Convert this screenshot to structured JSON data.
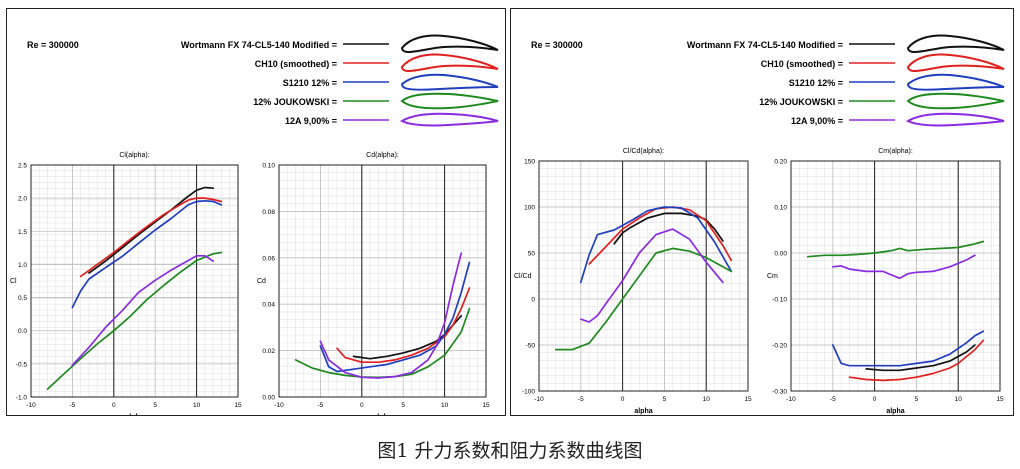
{
  "caption": "图1 升力系数和阻力系数曲线图",
  "legend": {
    "re_label": "Re = 300000",
    "entries": [
      {
        "label": "Wortmann FX 74-CL5-140 Modified =",
        "color": "#111111",
        "profile": "highcamber"
      },
      {
        "label": "CH10 (smoothed) =",
        "color": "#e0201e",
        "profile": "highcamber"
      },
      {
        "label": "S1210 12% =",
        "color": "#1f3fbf",
        "profile": "camber"
      },
      {
        "label": "12% JOUKOWSKI =",
        "color": "#1e8a1e",
        "profile": "symmetric"
      },
      {
        "label": "12A 9,00% =",
        "color": "#8a2be2",
        "profile": "thin"
      }
    ]
  },
  "chart_data": [
    {
      "type": "line",
      "title": "Cl(alpha):",
      "xlabel": "alpha",
      "ylabel": "Cl",
      "xlim": [
        -10,
        15
      ],
      "ylim": [
        -1.0,
        2.5
      ],
      "xticks": [
        "-10",
        "-5",
        "0",
        "5",
        "10",
        "15"
      ],
      "yticks": [
        "-1.0",
        "-0.5",
        "0.0",
        "0.5",
        "1.0",
        "1.5",
        "2.0",
        "2.5"
      ],
      "grid": true,
      "series": [
        {
          "color": "#111111",
          "x": [
            -3,
            -1,
            1,
            3,
            5,
            7,
            8,
            9,
            10,
            11,
            12
          ],
          "y": [
            0.87,
            1.05,
            1.25,
            1.45,
            1.64,
            1.83,
            1.93,
            2.03,
            2.12,
            2.16,
            2.15
          ]
        },
        {
          "color": "#e0201e",
          "x": [
            -4,
            -2,
            0,
            2,
            4,
            6,
            8,
            9,
            10,
            11,
            12,
            13
          ],
          "y": [
            0.82,
            1.0,
            1.18,
            1.38,
            1.57,
            1.75,
            1.9,
            1.97,
            2.0,
            2.0,
            1.98,
            1.95
          ]
        },
        {
          "color": "#1f3fbf",
          "x": [
            -5,
            -4,
            -3,
            -1,
            1,
            3,
            5,
            7,
            8,
            9,
            10,
            11,
            12,
            13
          ],
          "y": [
            0.35,
            0.6,
            0.78,
            0.95,
            1.12,
            1.32,
            1.52,
            1.7,
            1.8,
            1.9,
            1.95,
            1.96,
            1.95,
            1.9
          ]
        },
        {
          "color": "#1e8a1e",
          "x": [
            -8,
            -6,
            -4,
            -2,
            0,
            2,
            4,
            6,
            8,
            10,
            12,
            13
          ],
          "y": [
            -0.88,
            -0.65,
            -0.42,
            -0.2,
            0.0,
            0.22,
            0.47,
            0.68,
            0.88,
            1.06,
            1.16,
            1.18
          ]
        },
        {
          "color": "#8a2be2",
          "x": [
            -5,
            -3,
            -1,
            1,
            3,
            5,
            7,
            9,
            10,
            11,
            12
          ],
          "y": [
            -0.52,
            -0.25,
            0.05,
            0.3,
            0.58,
            0.76,
            0.92,
            1.06,
            1.13,
            1.13,
            1.05
          ]
        }
      ]
    },
    {
      "type": "line",
      "title": "Cd(alpha):",
      "xlabel": "alpha",
      "ylabel": "Cd",
      "xlim": [
        -10,
        15
      ],
      "ylim": [
        0.0,
        0.1
      ],
      "xticks": [
        "-10",
        "-5",
        "0",
        "5",
        "10",
        "15"
      ],
      "yticks": [
        "0.00",
        "0.02",
        "0.04",
        "0.06",
        "0.08",
        "0.10"
      ],
      "grid": true,
      "series": [
        {
          "color": "#111111",
          "x": [
            -1,
            1,
            3,
            5,
            7,
            9,
            10,
            11,
            12
          ],
          "y": [
            0.0175,
            0.0165,
            0.0175,
            0.019,
            0.021,
            0.024,
            0.027,
            0.031,
            0.035
          ]
        },
        {
          "color": "#e0201e",
          "x": [
            -3,
            -2,
            0,
            2,
            4,
            6,
            8,
            10,
            11,
            12,
            13
          ],
          "y": [
            0.021,
            0.017,
            0.015,
            0.015,
            0.016,
            0.018,
            0.021,
            0.026,
            0.031,
            0.038,
            0.047
          ]
        },
        {
          "color": "#1f3fbf",
          "x": [
            -5,
            -4,
            -3,
            -1,
            1,
            3,
            5,
            7,
            9,
            10,
            11,
            12,
            13
          ],
          "y": [
            0.022,
            0.013,
            0.011,
            0.012,
            0.013,
            0.014,
            0.016,
            0.018,
            0.022,
            0.027,
            0.034,
            0.045,
            0.058
          ]
        },
        {
          "color": "#1e8a1e",
          "x": [
            -8,
            -6,
            -4,
            -2,
            0,
            2,
            4,
            6,
            8,
            10,
            12,
            13
          ],
          "y": [
            0.016,
            0.0125,
            0.0105,
            0.0093,
            0.0086,
            0.0085,
            0.0088,
            0.0098,
            0.013,
            0.018,
            0.028,
            0.038
          ]
        },
        {
          "color": "#8a2be2",
          "x": [
            -5,
            -4,
            -2,
            0,
            2,
            4,
            6,
            8,
            9,
            10,
            11,
            12
          ],
          "y": [
            0.024,
            0.016,
            0.0105,
            0.0085,
            0.0082,
            0.0088,
            0.0105,
            0.016,
            0.022,
            0.032,
            0.048,
            0.062
          ]
        }
      ]
    },
    {
      "type": "line",
      "title": "Cl/Cd(alpha):",
      "xlabel": "alpha",
      "ylabel": "Cl/Cd",
      "xlim": [
        -10,
        15
      ],
      "ylim": [
        -100,
        150
      ],
      "xticks": [
        "-10",
        "-5",
        "0",
        "5",
        "10",
        "15"
      ],
      "yticks": [
        "-100",
        "-50",
        "0",
        "50",
        "100",
        "150"
      ],
      "grid": true,
      "series": [
        {
          "color": "#111111",
          "x": [
            -1,
            0,
            1,
            3,
            5,
            7,
            9,
            10,
            11,
            12
          ],
          "y": [
            60,
            72,
            78,
            88,
            93,
            93,
            90,
            86,
            76,
            63
          ]
        },
        {
          "color": "#e0201e",
          "x": [
            -4,
            -2,
            0,
            2,
            4,
            6,
            8,
            10,
            12,
            13
          ],
          "y": [
            38,
            57,
            76,
            88,
            98,
            100,
            97,
            85,
            58,
            42
          ]
        },
        {
          "color": "#1f3fbf",
          "x": [
            -5,
            -4,
            -3,
            -1,
            1,
            3,
            5,
            7,
            9,
            11,
            13
          ],
          "y": [
            18,
            48,
            70,
            75,
            85,
            96,
            100,
            99,
            88,
            62,
            30
          ]
        },
        {
          "color": "#1e8a1e",
          "x": [
            -8,
            -6,
            -4,
            -2,
            0,
            2,
            4,
            6,
            8,
            10,
            12,
            13
          ],
          "y": [
            -55,
            -55,
            -48,
            -25,
            0,
            25,
            50,
            55,
            52,
            45,
            35,
            30
          ]
        },
        {
          "color": "#8a2be2",
          "x": [
            -5,
            -4,
            -3,
            -2,
            0,
            2,
            4,
            6,
            8,
            10,
            12
          ],
          "y": [
            -22,
            -25,
            -18,
            -5,
            20,
            50,
            70,
            76,
            65,
            40,
            18
          ]
        }
      ]
    },
    {
      "type": "line",
      "title": "Cm(alpha):",
      "xlabel": "alpha",
      "ylabel": "Cm",
      "xlim": [
        -10,
        15
      ],
      "ylim": [
        -0.3,
        0.2
      ],
      "xticks": [
        "-10",
        "-5",
        "0",
        "5",
        "10",
        "15"
      ],
      "yticks": [
        "-0.30",
        "-0.20",
        "-0.10",
        "0.00",
        "0.10",
        "0.20"
      ],
      "grid": true,
      "series": [
        {
          "color": "#111111",
          "x": [
            -1,
            1,
            3,
            5,
            7,
            9,
            10,
            11,
            12
          ],
          "y": [
            -0.252,
            -0.255,
            -0.255,
            -0.25,
            -0.245,
            -0.235,
            -0.225,
            -0.215,
            -0.2
          ]
        },
        {
          "color": "#e0201e",
          "x": [
            -3,
            -1,
            1,
            3,
            5,
            7,
            9,
            10,
            11,
            12,
            13
          ],
          "y": [
            -0.27,
            -0.275,
            -0.277,
            -0.275,
            -0.27,
            -0.262,
            -0.25,
            -0.24,
            -0.225,
            -0.21,
            -0.19
          ]
        },
        {
          "color": "#1f3fbf",
          "x": [
            -5,
            -4,
            -3,
            -1,
            1,
            3,
            5,
            7,
            9,
            11,
            12,
            13
          ],
          "y": [
            -0.2,
            -0.24,
            -0.245,
            -0.245,
            -0.245,
            -0.245,
            -0.24,
            -0.235,
            -0.22,
            -0.195,
            -0.18,
            -0.17
          ]
        },
        {
          "color": "#1e8a1e",
          "x": [
            -8,
            -6,
            -4,
            -2,
            0,
            2,
            3,
            4,
            6,
            8,
            10,
            12,
            13
          ],
          "y": [
            -0.008,
            -0.005,
            -0.005,
            -0.003,
            0.0,
            0.005,
            0.01,
            0.005,
            0.008,
            0.01,
            0.012,
            0.02,
            0.025
          ]
        },
        {
          "color": "#8a2be2",
          "x": [
            -5,
            -4,
            -3,
            -1,
            1,
            3,
            4,
            5,
            7,
            9,
            11,
            12
          ],
          "y": [
            -0.03,
            -0.028,
            -0.035,
            -0.04,
            -0.04,
            -0.055,
            -0.045,
            -0.042,
            -0.04,
            -0.03,
            -0.015,
            -0.005
          ]
        }
      ]
    }
  ]
}
